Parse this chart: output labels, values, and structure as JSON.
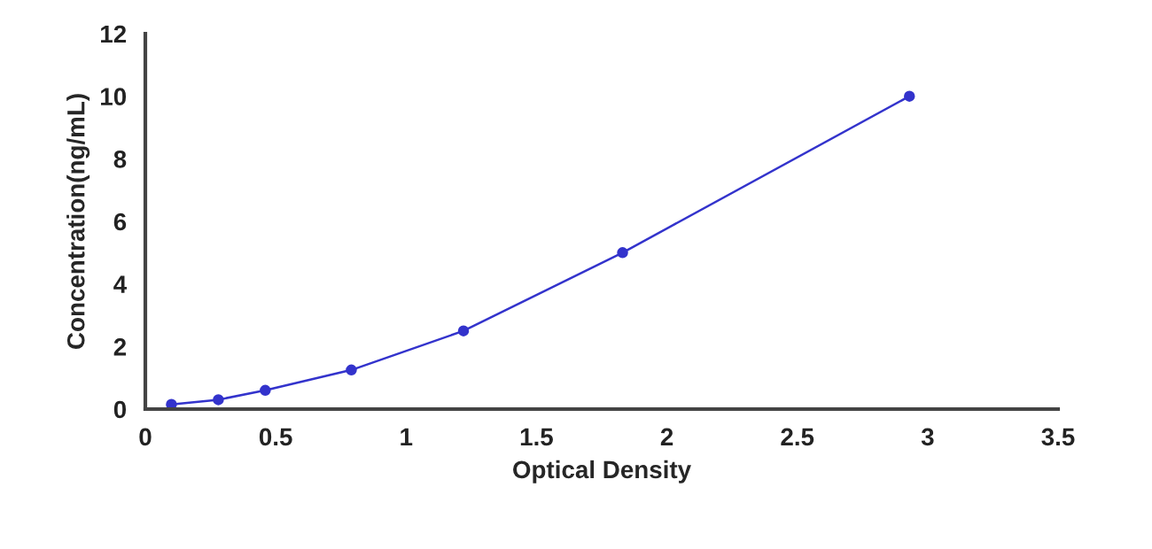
{
  "chart_data": {
    "type": "line",
    "xlabel": "Optical Density",
    "ylabel": "Concentration(ng/mL)",
    "xlim": [
      0,
      3.5
    ],
    "xticks": [
      0,
      0.5,
      1,
      1.5,
      2,
      2.5,
      3,
      3.5
    ],
    "ylim": [
      0,
      12
    ],
    "yticks": [
      0,
      2,
      4,
      6,
      8,
      10,
      12
    ],
    "grid": false,
    "legend": false,
    "marker": "circle",
    "line_style": "solid",
    "series": [
      {
        "color": "#3333cc",
        "x": [
          0.1,
          0.28,
          0.46,
          0.79,
          1.22,
          1.83,
          2.93
        ],
        "values": [
          0.15,
          0.3,
          0.6,
          1.25,
          2.5,
          5,
          10
        ]
      }
    ]
  }
}
